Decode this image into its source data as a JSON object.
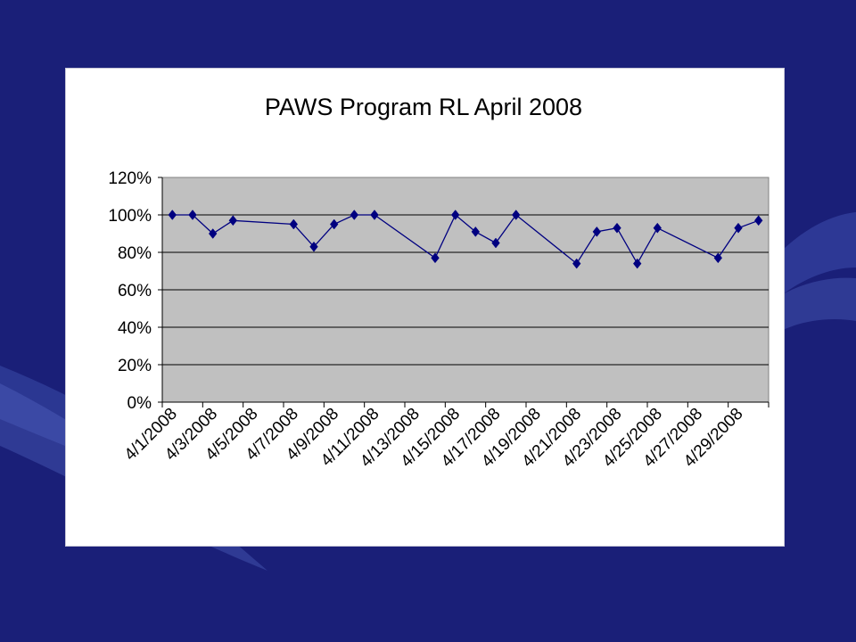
{
  "slide": {
    "background_color": "#1a1f78",
    "swoosh_color": "#3a4aa8"
  },
  "chart_data": {
    "type": "line",
    "title": "PAWS Program RL April 2008",
    "xlabel": "",
    "ylabel": "",
    "ylim": [
      0,
      1.2
    ],
    "y_ticks": [
      0,
      0.2,
      0.4,
      0.6,
      0.8,
      1.0,
      1.2
    ],
    "y_tick_labels": [
      "0%",
      "20%",
      "40%",
      "60%",
      "80%",
      "100%",
      "120%"
    ],
    "x_range": [
      "4/1/2008",
      "4/30/2008"
    ],
    "x_tick_labels": [
      "4/1/2008",
      "4/3/2008",
      "4/5/2008",
      "4/7/2008",
      "4/9/2008",
      "4/11/2008",
      "4/13/2008",
      "4/15/2008",
      "4/17/2008",
      "4/19/2008",
      "4/21/2008",
      "4/23/2008",
      "4/25/2008",
      "4/27/2008",
      "4/29/2008"
    ],
    "grid": true,
    "legend": "none",
    "plot_background": "#c0c0c0",
    "series_color": "#000080",
    "series": [
      {
        "marker": "diamond",
        "points": [
          {
            "x": "4/1/2008",
            "y": 1.0
          },
          {
            "x": "4/2/2008",
            "y": 1.0
          },
          {
            "x": "4/3/2008",
            "y": 0.9
          },
          {
            "x": "4/4/2008",
            "y": 0.97
          },
          {
            "x": "4/7/2008",
            "y": 0.95
          },
          {
            "x": "4/8/2008",
            "y": 0.83
          },
          {
            "x": "4/9/2008",
            "y": 0.95
          },
          {
            "x": "4/10/2008",
            "y": 1.0
          },
          {
            "x": "4/11/2008",
            "y": 1.0
          },
          {
            "x": "4/14/2008",
            "y": 0.77
          },
          {
            "x": "4/15/2008",
            "y": 1.0
          },
          {
            "x": "4/16/2008",
            "y": 0.91
          },
          {
            "x": "4/17/2008",
            "y": 0.85
          },
          {
            "x": "4/18/2008",
            "y": 1.0
          },
          {
            "x": "4/21/2008",
            "y": 0.74
          },
          {
            "x": "4/22/2008",
            "y": 0.91
          },
          {
            "x": "4/23/2008",
            "y": 0.93
          },
          {
            "x": "4/24/2008",
            "y": 0.74
          },
          {
            "x": "4/25/2008",
            "y": 0.93
          },
          {
            "x": "4/28/2008",
            "y": 0.77
          },
          {
            "x": "4/29/2008",
            "y": 0.93
          },
          {
            "x": "4/30/2008",
            "y": 0.97
          }
        ]
      }
    ]
  }
}
